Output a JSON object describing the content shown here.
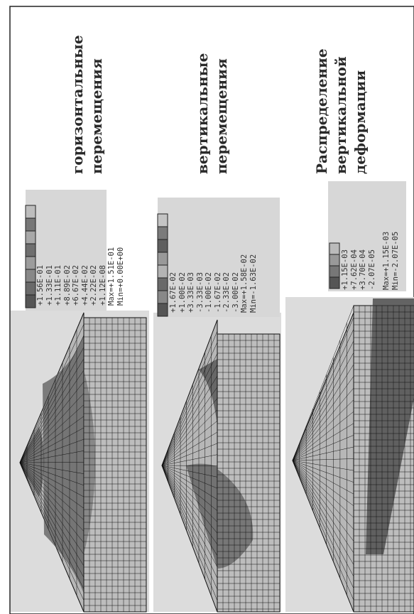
{
  "panels": [
    {
      "title_line1": "горизонтальные",
      "title_line2": "перемещения",
      "title_line3": "",
      "legend": [
        "+1.56E-01",
        "+1.33E-01",
        "+1.11E-01",
        "+8.89E-02",
        "+6.67E-02",
        "+4.44E-02",
        "+2.22E-02",
        "+1.12E-08"
      ],
      "max_text": "Max=+1.51E-01",
      "min_text": "Min=+0.00E+00"
    },
    {
      "title_line1": "вертикальные",
      "title_line2": "перемещения",
      "title_line3": "",
      "legend": [
        "+1.67E-02",
        "+1.00E-02",
        "+3.33E-03",
        "-3.33E-03",
        "-1.00E-02",
        "-1.67E-02",
        "-2.33E-02",
        "-3.00E-02"
      ],
      "max_text": "Max=+1.58E-02",
      "min_text": "Min=-1.63E-02"
    },
    {
      "title_line1": "Распределение",
      "title_line2": "вертикальной",
      "title_line3": "деформации",
      "legend": [
        "+1.15E-03",
        "+7.62E-04",
        "+3.70E-04",
        "-2.07E-05"
      ],
      "max_text": "Max=+1.15E-03",
      "min_text": "Min=-2.07E-05"
    }
  ],
  "colors": {
    "background": "#ffffff",
    "plot_bg": "#dcdcdc",
    "mesh_light": "#b9b9b9",
    "mesh_dark": "#6e6e6e",
    "grid_line": "#111111"
  }
}
